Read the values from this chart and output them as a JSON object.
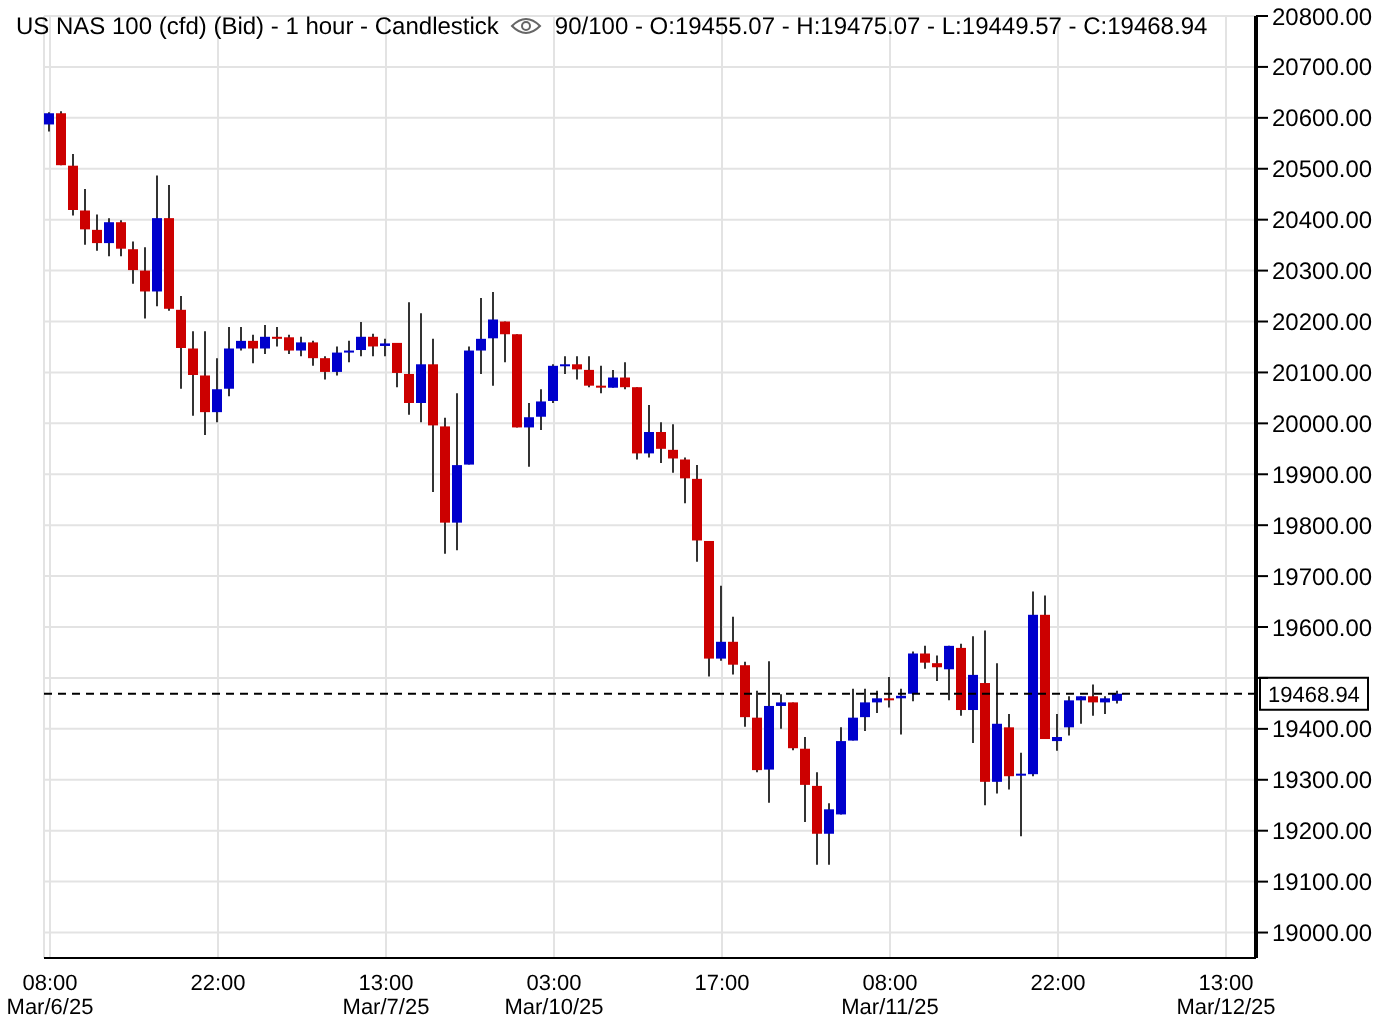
{
  "chart_data": {
    "type": "candlestick",
    "title": "US NAS 100 (cfd) (Bid) - 1 hour - Candlestick",
    "subtitle": "90/100 - O:19455.07 - H:19475.07 - L:19449.57 - C:19468.94",
    "categories": [
      "08:00\nMar/6/25",
      null,
      null,
      null,
      null,
      null,
      null,
      null,
      null,
      null,
      null,
      null,
      null,
      null,
      "22:00",
      null,
      null,
      null,
      null,
      null,
      null,
      null,
      null,
      null,
      null,
      null,
      null,
      null,
      "13:00\nMar/7/25",
      null,
      null,
      null,
      null,
      null,
      null,
      null,
      null,
      null,
      null,
      null,
      null,
      null,
      "03:00\nMar/10/25",
      null,
      null,
      null,
      null,
      null,
      null,
      null,
      null,
      null,
      null,
      null,
      null,
      null,
      "17:00",
      null,
      null,
      null,
      null,
      null,
      null,
      null,
      null,
      null,
      null,
      null,
      null,
      null,
      "08:00\nMar/11/25",
      null,
      null,
      null,
      null,
      null,
      null,
      null,
      null,
      null,
      null,
      null,
      null,
      null,
      "22:00",
      null,
      null,
      null,
      null,
      null,
      null,
      null,
      null,
      null,
      null,
      null,
      null,
      null,
      "13:00\nMar/12/25",
      null,
      null
    ],
    "ohlc": [
      [
        20587,
        20611,
        20573,
        20609
      ],
      [
        20609,
        20613,
        20507,
        20507
      ],
      [
        20506,
        20529,
        20408,
        20419
      ],
      [
        20418,
        20460,
        20351,
        20381
      ],
      [
        20380,
        20410,
        20339,
        20354
      ],
      [
        20354,
        20403,
        20328,
        20395
      ],
      [
        20395,
        20399,
        20328,
        20343
      ],
      [
        20342,
        20357,
        20274,
        20301
      ],
      [
        20300,
        20346,
        20206,
        20259
      ],
      [
        20259,
        20487,
        20230,
        20403
      ],
      [
        20403,
        20468,
        20221,
        20225
      ],
      [
        20223,
        20250,
        20068,
        20148
      ],
      [
        20147,
        20181,
        20015,
        20095
      ],
      [
        20094,
        20181,
        19977,
        20022
      ],
      [
        20022,
        20128,
        20002,
        20067
      ],
      [
        20068,
        20189,
        20053,
        20147
      ],
      [
        20147,
        20189,
        20143,
        20162
      ],
      [
        20162,
        20174,
        20118,
        20147
      ],
      [
        20147,
        20193,
        20136,
        20170
      ],
      [
        20170,
        20189,
        20151,
        20166
      ],
      [
        20169,
        20174,
        20136,
        20143
      ],
      [
        20143,
        20170,
        20132,
        20159
      ],
      [
        20159,
        20162,
        20113,
        20128
      ],
      [
        20128,
        20132,
        20086,
        20101
      ],
      [
        20101,
        20151,
        20094,
        20139
      ],
      [
        20139,
        20162,
        20120,
        20143
      ],
      [
        20144,
        20199,
        20132,
        20170
      ],
      [
        20170,
        20176,
        20132,
        20151
      ],
      [
        20152,
        20166,
        20132,
        20157
      ],
      [
        20158,
        20158,
        20071,
        20099
      ],
      [
        20097,
        20238,
        20017,
        20040
      ],
      [
        20040,
        20216,
        20002,
        20116
      ],
      [
        20116,
        20166,
        19865,
        19996
      ],
      [
        19994,
        20011,
        19744,
        19805
      ],
      [
        19805,
        20059,
        19751,
        19918
      ],
      [
        19919,
        20151,
        19919,
        20143
      ],
      [
        20143,
        20246,
        20097,
        20166
      ],
      [
        20167,
        20258,
        20074,
        20204
      ],
      [
        20200,
        20200,
        20120,
        20175
      ],
      [
        20175,
        20175,
        19992,
        19992
      ],
      [
        19992,
        20040,
        19915,
        20012
      ],
      [
        20013,
        20067,
        19987,
        20043
      ],
      [
        20044,
        20116,
        20040,
        20113
      ],
      [
        20113,
        20132,
        20097,
        20116
      ],
      [
        20116,
        20132,
        20086,
        20106
      ],
      [
        20105,
        20132,
        20071,
        20074
      ],
      [
        20074,
        20113,
        20059,
        20072
      ],
      [
        20070,
        20105,
        20070,
        20090
      ],
      [
        20090,
        20120,
        20067,
        20071
      ],
      [
        20071,
        20071,
        19929,
        19941
      ],
      [
        19941,
        20036,
        19933,
        19983
      ],
      [
        19983,
        20002,
        19922,
        19950
      ],
      [
        19948,
        19998,
        19903,
        19931
      ],
      [
        19929,
        19933,
        19843,
        19892
      ],
      [
        19891,
        19918,
        19728,
        19770
      ],
      [
        19769,
        19769,
        19503,
        19538
      ],
      [
        19538,
        19681,
        19534,
        19571
      ],
      [
        19571,
        19620,
        19507,
        19526
      ],
      [
        19525,
        19532,
        19404,
        19423
      ],
      [
        19422,
        19475,
        19315,
        19319
      ],
      [
        19320,
        19533,
        19255,
        19445
      ],
      [
        19445,
        19468,
        19400,
        19452
      ],
      [
        19452,
        19452,
        19358,
        19362
      ],
      [
        19361,
        19384,
        19217,
        19290
      ],
      [
        19288,
        19315,
        19133,
        19194
      ],
      [
        19194,
        19254,
        19133,
        19242
      ],
      [
        19232,
        19403,
        19232,
        19376
      ],
      [
        19377,
        19479,
        19377,
        19422
      ],
      [
        19423,
        19479,
        19396,
        19452
      ],
      [
        19452,
        19475,
        19431,
        19460
      ],
      [
        19460,
        19502,
        19442,
        19457
      ],
      [
        19460,
        19479,
        19389,
        19465
      ],
      [
        19469,
        19552,
        19454,
        19548
      ],
      [
        19548,
        19563,
        19518,
        19530
      ],
      [
        19529,
        19544,
        19494,
        19521
      ],
      [
        19517,
        19563,
        19456,
        19563
      ],
      [
        19559,
        19567,
        19426,
        19437
      ],
      [
        19437,
        19582,
        19372,
        19506
      ],
      [
        19490,
        19593,
        19250,
        19296
      ],
      [
        19296,
        19529,
        19273,
        19410
      ],
      [
        19403,
        19429,
        19281,
        19307
      ],
      [
        19309,
        19353,
        19189,
        19312
      ],
      [
        19311,
        19670,
        19307,
        19624
      ],
      [
        19624,
        19662,
        19380,
        19380
      ],
      [
        19376,
        19429,
        19357,
        19384
      ],
      [
        19403,
        19464,
        19387,
        19456
      ],
      [
        19456,
        19464,
        19410,
        19464
      ],
      [
        19464,
        19487,
        19426,
        19452
      ],
      [
        19452,
        19464,
        19429,
        19460
      ],
      [
        19455.07,
        19475.07,
        19449.57,
        19468.94
      ],
      null,
      null,
      null,
      null,
      null,
      null,
      null,
      null,
      null,
      null,
      null
    ],
    "colors": [
      "#0000cc",
      "#cc0000",
      "#cc0000",
      "#cc0000",
      "#cc0000",
      "#0000cc",
      "#cc0000",
      "#cc0000",
      "#cc0000",
      "#0000cc",
      "#cc0000",
      "#cc0000",
      "#cc0000",
      "#cc0000",
      "#0000cc",
      "#0000cc",
      "#0000cc",
      "#cc0000",
      "#0000cc",
      "#cc0000",
      "#cc0000",
      "#0000cc",
      "#cc0000",
      "#cc0000",
      "#0000cc",
      "#0000cc",
      "#0000cc",
      "#cc0000",
      "#0000cc",
      "#cc0000",
      "#cc0000",
      "#0000cc",
      "#cc0000",
      "#cc0000",
      "#0000cc",
      "#0000cc",
      "#0000cc",
      "#0000cc",
      "#cc0000",
      "#cc0000",
      "#0000cc",
      "#0000cc",
      "#0000cc",
      "#0000cc",
      "#cc0000",
      "#cc0000",
      "#cc0000",
      "#0000cc",
      "#cc0000",
      "#cc0000",
      "#0000cc",
      "#cc0000",
      "#cc0000",
      "#cc0000",
      "#cc0000",
      "#cc0000",
      "#0000cc",
      "#cc0000",
      "#cc0000",
      "#cc0000",
      "#0000cc",
      "#0000cc",
      "#cc0000",
      "#cc0000",
      "#cc0000",
      "#0000cc",
      "#0000cc",
      "#0000cc",
      "#0000cc",
      "#0000cc",
      "#cc0000",
      "#0000cc",
      "#0000cc",
      "#cc0000",
      "#cc0000",
      "#0000cc",
      "#cc0000",
      "#0000cc",
      "#cc0000",
      "#0000cc",
      "#cc0000",
      "#0000cc",
      "#0000cc",
      "#cc0000",
      "#0000cc",
      "#0000cc",
      "#0000cc",
      "#cc0000",
      "#0000cc",
      "#0000cc",
      null,
      null,
      null,
      null,
      null,
      null,
      null,
      null,
      null,
      null,
      null
    ],
    "ylim": [
      18950,
      20800
    ],
    "yticks": [
      {
        "value": 19000,
        "label": "19000.00"
      },
      {
        "value": 19100,
        "label": "19100.00"
      },
      {
        "value": 19200,
        "label": "19200.00"
      },
      {
        "value": 19300,
        "label": "19300.00"
      },
      {
        "value": 19400,
        "label": "19400.00"
      },
      {
        "value": 19500,
        "label": null
      },
      {
        "value": 19600,
        "label": "19600.00"
      },
      {
        "value": 19700,
        "label": "19700.00"
      },
      {
        "value": 19800,
        "label": "19800.00"
      },
      {
        "value": 19900,
        "label": "19900.00"
      },
      {
        "value": 20000,
        "label": "20000.00"
      },
      {
        "value": 20100,
        "label": "20100.00"
      },
      {
        "value": 20200,
        "label": "20200.00"
      },
      {
        "value": 20300,
        "label": "20300.00"
      },
      {
        "value": 20400,
        "label": "20400.00"
      },
      {
        "value": 20500,
        "label": "20500.00"
      },
      {
        "value": 20600,
        "label": "20600.00"
      },
      {
        "value": 20700,
        "label": "20700.00"
      },
      {
        "value": 20800,
        "label": "20800.00"
      }
    ],
    "ref_lines": [
      {
        "axis": "y",
        "value": 19468.94,
        "label": "19468.94",
        "color": "#000000",
        "line_style": "dashed"
      }
    ],
    "grid": true
  }
}
